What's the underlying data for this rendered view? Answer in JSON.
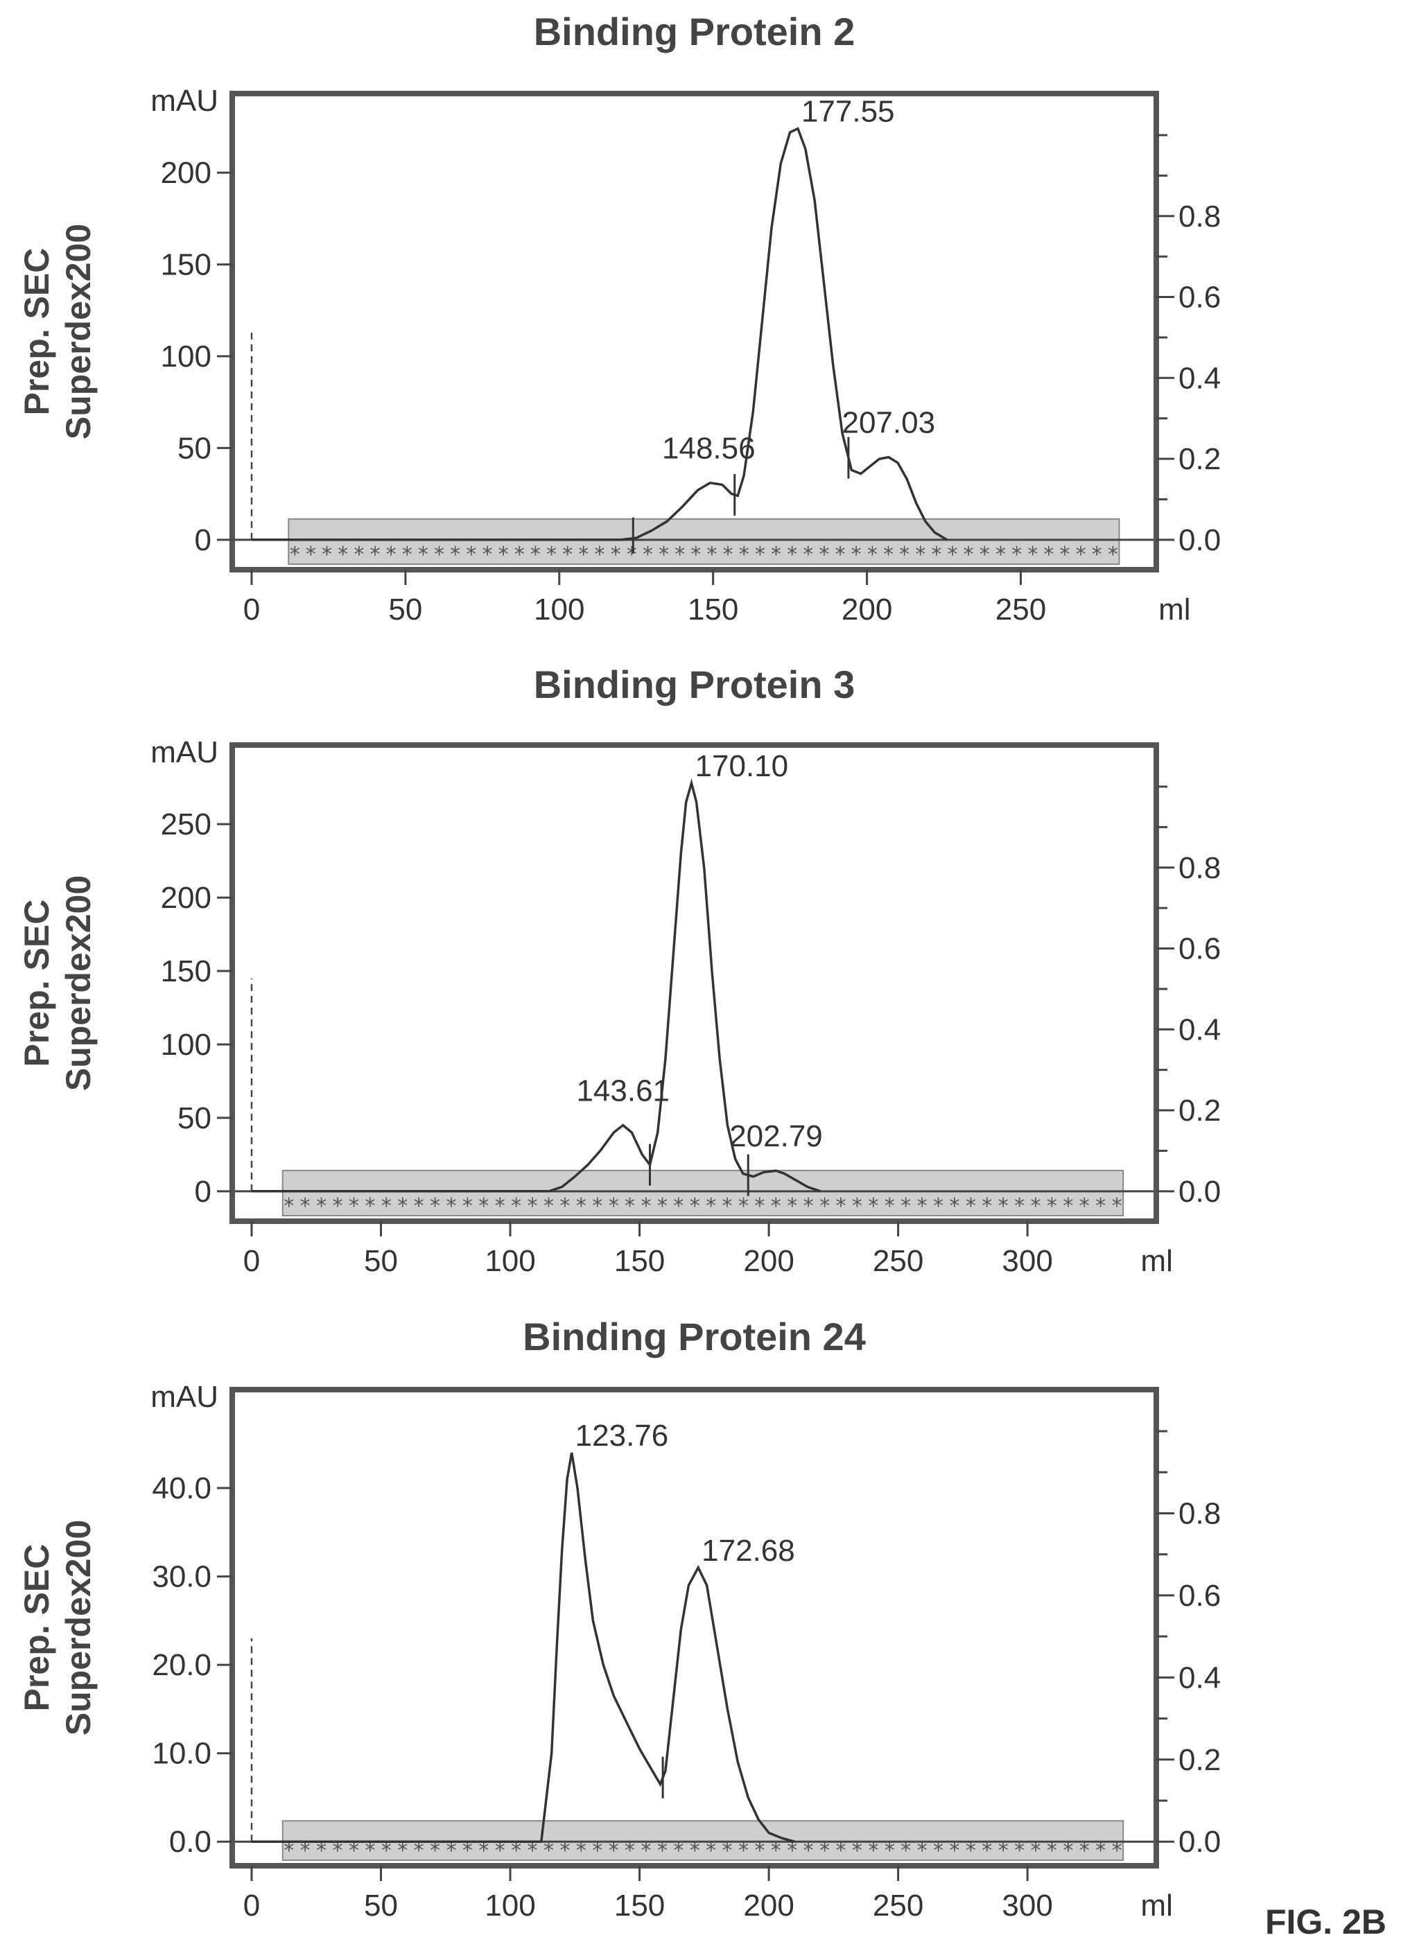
{
  "figure_label": "FIG. 2B",
  "chart_data": [
    {
      "type": "line",
      "title": "Binding Protein 2",
      "ylabel_line1": "Prep. SEC",
      "ylabel_line2": "Superdex200",
      "y_unit": "mAU",
      "x_unit": "ml",
      "xlim": [
        0,
        290
      ],
      "ylim": [
        -8,
        228
      ],
      "x_ticks": [
        0,
        50,
        100,
        150,
        200,
        250
      ],
      "y_ticks": [
        0,
        50,
        100,
        150,
        200
      ],
      "y_tick_labels": [
        "0",
        "50",
        "100",
        "150",
        "200"
      ],
      "y2_ticks": [
        0.0,
        0.2,
        0.4,
        0.6,
        0.8
      ],
      "y2_tick_labels": [
        "0.0",
        "0.2",
        "0.4",
        "0.6",
        "0.8"
      ],
      "injection_marker": {
        "x": 0,
        "y_top": 115
      },
      "fraction_marks": [
        124,
        157,
        194
      ],
      "peaks": [
        {
          "x": 148.56,
          "y": 31,
          "label": "148.56"
        },
        {
          "x": 177.55,
          "y": 224,
          "label": "177.55"
        },
        {
          "x": 207.03,
          "y": 45,
          "label": "207.03"
        }
      ],
      "trace": [
        [
          0,
          0
        ],
        [
          120,
          0
        ],
        [
          125,
          1
        ],
        [
          130,
          5
        ],
        [
          135,
          10
        ],
        [
          140,
          18
        ],
        [
          145,
          27
        ],
        [
          149,
          31
        ],
        [
          153,
          30
        ],
        [
          156,
          25
        ],
        [
          158,
          24
        ],
        [
          160,
          35
        ],
        [
          163,
          70
        ],
        [
          166,
          120
        ],
        [
          169,
          170
        ],
        [
          172,
          205
        ],
        [
          175,
          222
        ],
        [
          177.55,
          224
        ],
        [
          180,
          213
        ],
        [
          183,
          185
        ],
        [
          186,
          140
        ],
        [
          189,
          95
        ],
        [
          192,
          58
        ],
        [
          195,
          38
        ],
        [
          198,
          36
        ],
        [
          201,
          40
        ],
        [
          204,
          44
        ],
        [
          207.03,
          45
        ],
        [
          210,
          42
        ],
        [
          213,
          33
        ],
        [
          216,
          20
        ],
        [
          219,
          10
        ],
        [
          222,
          4
        ],
        [
          226,
          0
        ]
      ]
    },
    {
      "type": "line",
      "title": "Binding Protein 3",
      "ylabel_line1": "Prep. SEC",
      "ylabel_line2": "Superdex200",
      "y_unit": "mAU",
      "x_unit": "ml",
      "xlim": [
        0,
        345
      ],
      "ylim": [
        -10,
        285
      ],
      "x_ticks": [
        0,
        50,
        100,
        150,
        200,
        250,
        300
      ],
      "y_ticks": [
        0,
        50,
        100,
        150,
        200,
        250
      ],
      "y_tick_labels": [
        "0",
        "50",
        "100",
        "150",
        "200",
        "250"
      ],
      "y2_ticks": [
        0.0,
        0.2,
        0.4,
        0.6,
        0.8
      ],
      "y2_tick_labels": [
        "0.0",
        "0.2",
        "0.4",
        "0.6",
        "0.8"
      ],
      "injection_marker": {
        "x": 0,
        "y_top": 145
      },
      "fraction_marks": [
        154,
        192
      ],
      "peaks": [
        {
          "x": 143.61,
          "y": 45,
          "label": "143.61"
        },
        {
          "x": 170.1,
          "y": 278,
          "label": "170.10"
        },
        {
          "x": 202.79,
          "y": 14,
          "label": "202.79"
        }
      ],
      "trace": [
        [
          0,
          0
        ],
        [
          115,
          0
        ],
        [
          120,
          3
        ],
        [
          125,
          10
        ],
        [
          130,
          18
        ],
        [
          135,
          28
        ],
        [
          140,
          40
        ],
        [
          143.61,
          45
        ],
        [
          147,
          40
        ],
        [
          151,
          25
        ],
        [
          154,
          18
        ],
        [
          157,
          40
        ],
        [
          160,
          90
        ],
        [
          163,
          160
        ],
        [
          166,
          230
        ],
        [
          168,
          265
        ],
        [
          170.1,
          278
        ],
        [
          172,
          265
        ],
        [
          175,
          220
        ],
        [
          178,
          150
        ],
        [
          181,
          90
        ],
        [
          184,
          45
        ],
        [
          187,
          22
        ],
        [
          190,
          12
        ],
        [
          194,
          10
        ],
        [
          198,
          13
        ],
        [
          202.79,
          14
        ],
        [
          206,
          12
        ],
        [
          210,
          8
        ],
        [
          215,
          3
        ],
        [
          220,
          0
        ]
      ]
    },
    {
      "type": "line",
      "title": "Binding Protein 24",
      "ylabel_line1": "Prep. SEC",
      "ylabel_line2": "Superdex200",
      "y_unit": "mAU",
      "x_unit": "ml",
      "xlim": [
        0,
        345
      ],
      "ylim": [
        -1,
        48
      ],
      "x_ticks": [
        0,
        50,
        100,
        150,
        200,
        250,
        300
      ],
      "y_ticks": [
        0,
        10,
        20,
        30,
        40
      ],
      "y_tick_labels": [
        "0.0",
        "10.0",
        "20.0",
        "30.0",
        "40.0"
      ],
      "y2_ticks": [
        0.0,
        0.2,
        0.4,
        0.6,
        0.8
      ],
      "y2_tick_labels": [
        "0.0",
        "0.2",
        "0.4",
        "0.6",
        "0.8"
      ],
      "injection_marker": {
        "x": 0,
        "y_top": 23
      },
      "fraction_marks": [
        159
      ],
      "peaks": [
        {
          "x": 123.76,
          "y": 44,
          "label": "123.76"
        },
        {
          "x": 172.68,
          "y": 31,
          "label": "172.68"
        }
      ],
      "trace": [
        [
          0,
          0
        ],
        [
          112,
          0
        ],
        [
          116,
          10
        ],
        [
          118,
          22
        ],
        [
          120,
          33
        ],
        [
          122,
          41
        ],
        [
          123.76,
          44
        ],
        [
          126,
          40
        ],
        [
          129,
          32
        ],
        [
          132,
          25
        ],
        [
          136,
          20
        ],
        [
          140,
          16.5
        ],
        [
          145,
          13.5
        ],
        [
          150,
          10.5
        ],
        [
          155,
          8
        ],
        [
          158,
          6.5
        ],
        [
          160,
          8
        ],
        [
          163,
          16
        ],
        [
          166,
          24
        ],
        [
          169,
          29
        ],
        [
          172.68,
          31
        ],
        [
          176,
          29
        ],
        [
          180,
          22
        ],
        [
          184,
          15
        ],
        [
          188,
          9
        ],
        [
          192,
          5
        ],
        [
          196,
          2.5
        ],
        [
          200,
          1
        ],
        [
          205,
          0.4
        ],
        [
          210,
          0
        ]
      ]
    }
  ]
}
